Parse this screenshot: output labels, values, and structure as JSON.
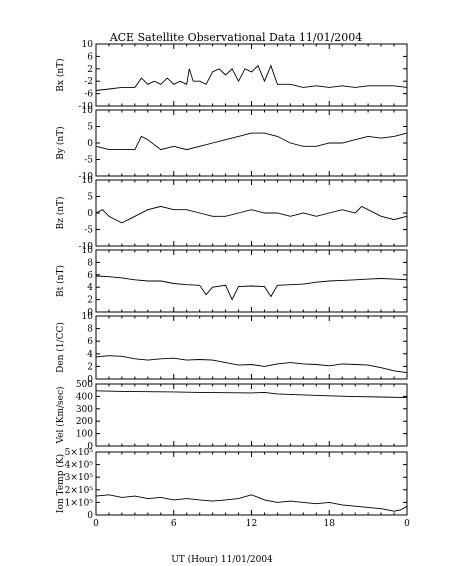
{
  "chart_data": {
    "type": "line",
    "title": "ACE Satellite Observational Data   11/01/2004",
    "xlabel": "UT (Hour)   11/01/2004",
    "x_ticks": [
      "0",
      "6",
      "12",
      "18",
      "0"
    ],
    "xlim": [
      0,
      24
    ],
    "grid": false,
    "panels": [
      {
        "name": "bx",
        "ylabel": "Bx (nT)",
        "ylim": [
          -10,
          10
        ],
        "yticks": [
          "10",
          "6",
          "2",
          "-2",
          "-6",
          "-10"
        ],
        "x": [
          0,
          1,
          2,
          3,
          3.5,
          4,
          4.5,
          5,
          5.5,
          6,
          6.5,
          7,
          7.2,
          7.5,
          8,
          8.5,
          9,
          9.5,
          10,
          10.5,
          11,
          11.5,
          12,
          12.5,
          13,
          13.5,
          14,
          15,
          16,
          17,
          18,
          19,
          20,
          21,
          22,
          23,
          24
        ],
        "y": [
          -5,
          -4.5,
          -4,
          -4,
          -1,
          -3,
          -2,
          -3,
          -1,
          -3,
          -2,
          -3,
          2,
          -2,
          -2,
          -3,
          1,
          2,
          0,
          2,
          -2,
          2,
          1,
          3,
          -2,
          3,
          -3,
          -3,
          -4,
          -3.5,
          -4,
          -3.5,
          -4,
          -3.5,
          -3.5,
          -3.5,
          -4
        ]
      },
      {
        "name": "by",
        "ylabel": "By (nT)",
        "ylim": [
          -10,
          10
        ],
        "yticks": [
          "10",
          "5",
          "0",
          "-5",
          "-10"
        ],
        "x": [
          0,
          1,
          2,
          3,
          3.5,
          4,
          5,
          6,
          7,
          8,
          9,
          10,
          11,
          12,
          13,
          14,
          15,
          16,
          17,
          18,
          19,
          20,
          21,
          22,
          23,
          24
        ],
        "y": [
          -1,
          -2,
          -2,
          -2,
          2,
          1,
          -2,
          -1,
          -2,
          -1,
          0,
          1,
          2,
          3,
          3,
          2,
          0,
          -1,
          -1,
          0,
          0,
          1,
          2,
          1.5,
          2,
          3
        ]
      },
      {
        "name": "bz",
        "ylabel": "Bz (nT)",
        "ylim": [
          -10,
          10
        ],
        "yticks": [
          "10",
          "5",
          "0",
          "-5",
          "-10"
        ],
        "x": [
          0,
          0.5,
          1,
          1.5,
          2,
          3,
          4,
          5,
          6,
          7,
          8,
          9,
          10,
          11,
          12,
          13,
          14,
          15,
          16,
          17,
          18,
          19,
          20,
          20.5,
          21,
          22,
          23,
          24
        ],
        "y": [
          0,
          1,
          -1,
          -2,
          -3,
          -1,
          1,
          2,
          1,
          1,
          0,
          -1,
          -1,
          0,
          1,
          0,
          0,
          -1,
          0,
          -1,
          0,
          1,
          0,
          2,
          1,
          -1,
          -2,
          -1
        ]
      },
      {
        "name": "bt",
        "ylabel": "Bt (nT)",
        "ylim": [
          0,
          10
        ],
        "yticks": [
          "10",
          "8",
          "6",
          "4",
          "2",
          "0"
        ],
        "x": [
          0,
          1,
          2,
          3,
          4,
          5,
          6,
          7,
          8,
          8.5,
          9,
          10,
          10.5,
          11,
          12,
          13,
          13.5,
          14,
          15,
          16,
          17,
          18,
          19,
          20,
          21,
          22,
          23,
          24
        ],
        "y": [
          5.8,
          5.7,
          5.5,
          5.2,
          5,
          5,
          4.6,
          4.4,
          4.3,
          2.8,
          4,
          4.3,
          2,
          4.1,
          4.2,
          4.1,
          2.5,
          4.3,
          4.4,
          4.5,
          4.8,
          5,
          5.1,
          5.2,
          5.3,
          5.4,
          5.3,
          5.2
        ]
      },
      {
        "name": "den",
        "ylabel": "Den (1/CC)",
        "ylim": [
          0,
          10
        ],
        "yticks": [
          "10",
          "8",
          "6",
          "4",
          "2",
          "0"
        ],
        "x": [
          0,
          1,
          2,
          3,
          4,
          5,
          6,
          7,
          8,
          9,
          10,
          11,
          12,
          13,
          14,
          15,
          16,
          17,
          18,
          19,
          20,
          21,
          22,
          23,
          24
        ],
        "y": [
          3.5,
          3.7,
          3.6,
          3.2,
          3,
          3.2,
          3.3,
          3,
          3.1,
          3,
          2.6,
          2.2,
          2.3,
          2,
          2.4,
          2.6,
          2.4,
          2.3,
          2.1,
          2.4,
          2.3,
          2.2,
          1.8,
          1.3,
          1
        ]
      },
      {
        "name": "vel",
        "ylabel": "Vel (Km/sec)",
        "ylim": [
          0,
          500
        ],
        "yticks": [
          "500",
          "400",
          "300",
          "200",
          "100",
          "0"
        ],
        "x": [
          0,
          2,
          4,
          6,
          8,
          10,
          12,
          13,
          14,
          16,
          18,
          20,
          22,
          24
        ],
        "y": [
          445,
          440,
          438,
          436,
          432,
          430,
          428,
          432,
          420,
          412,
          405,
          398,
          395,
          390
        ]
      },
      {
        "name": "temp",
        "ylabel": "Ion Temp (K)",
        "ylim": [
          0,
          500000
        ],
        "yticks": [
          "5×10⁵",
          "4×10⁵",
          "3×10⁵",
          "2×10⁵",
          "1×10⁵",
          "0"
        ],
        "x": [
          0,
          1,
          2,
          3,
          4,
          5,
          6,
          7,
          8,
          9,
          10,
          11,
          12,
          13,
          14,
          15,
          16,
          17,
          18,
          19,
          20,
          21,
          22,
          23,
          23.5,
          24
        ],
        "y": [
          150000,
          160000,
          140000,
          150000,
          130000,
          140000,
          120000,
          130000,
          120000,
          110000,
          120000,
          130000,
          160000,
          120000,
          100000,
          110000,
          100000,
          90000,
          100000,
          80000,
          70000,
          60000,
          50000,
          30000,
          40000,
          70000
        ]
      }
    ]
  }
}
